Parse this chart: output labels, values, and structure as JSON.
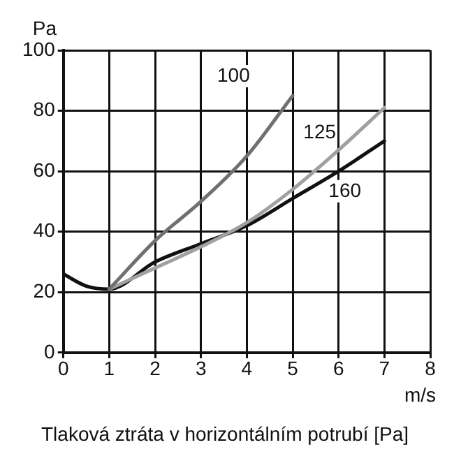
{
  "chart_data": {
    "type": "line",
    "title": "Tlaková ztráta v horizontálním potrubí [Pa]",
    "xlabel": "m/s",
    "ylabel": "Pa",
    "xlim": [
      0,
      8
    ],
    "xticks": [
      0,
      1,
      2,
      3,
      4,
      5,
      6,
      7,
      8
    ],
    "ylim": [
      0,
      100
    ],
    "yticks": [
      0,
      20,
      40,
      60,
      80,
      100
    ],
    "grid": true,
    "legend": false,
    "marker": "none",
    "line_style": "solid",
    "series": [
      {
        "name": "100",
        "color": "#707070",
        "x": [
          1,
          2,
          3,
          4,
          5
        ],
        "values": [
          21,
          37,
          50,
          65,
          85
        ]
      },
      {
        "name": "125",
        "color": "#a0a0a0",
        "x": [
          1,
          2,
          3,
          4,
          5,
          6,
          7
        ],
        "values": [
          21,
          28,
          35,
          43,
          54,
          67,
          81
        ]
      },
      {
        "name": "160",
        "color": "#111111",
        "x": [
          0,
          0.5,
          1,
          2,
          3,
          4,
          5,
          6,
          7
        ],
        "values": [
          26,
          22,
          21,
          30,
          36,
          42,
          51,
          60,
          70
        ]
      }
    ]
  }
}
